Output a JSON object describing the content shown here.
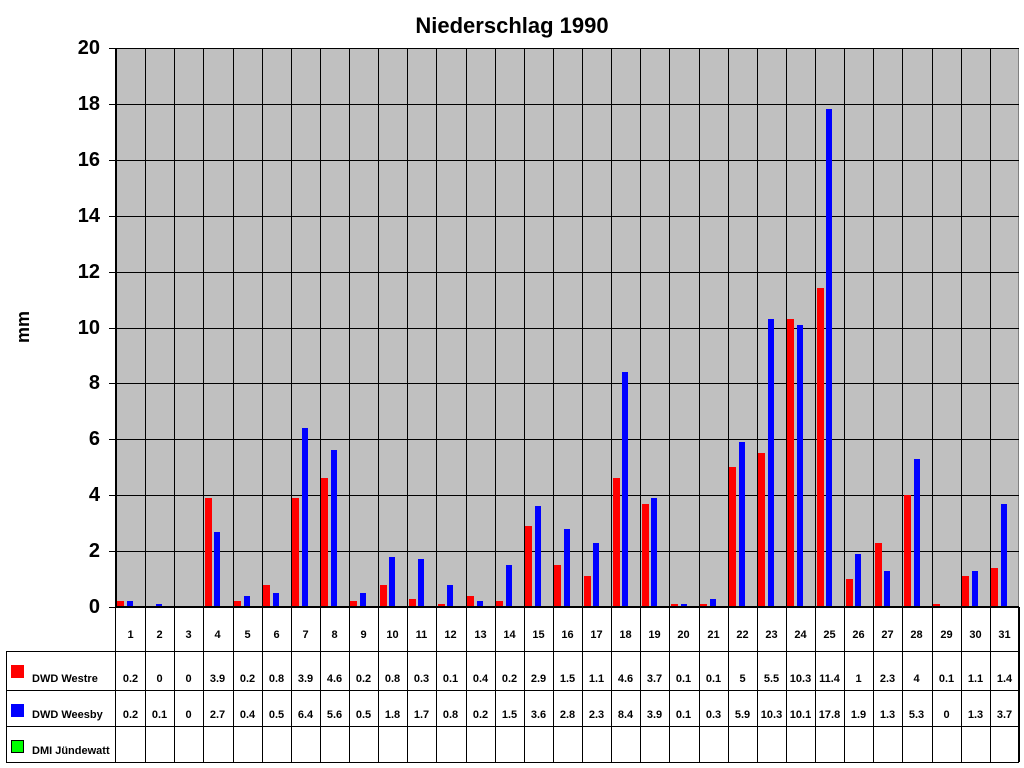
{
  "chart_data": {
    "type": "bar",
    "title": "Niederschlag 1990",
    "xlabel": "",
    "ylabel": "mm",
    "ylim": [
      0,
      20
    ],
    "yticks": [
      0,
      2,
      4,
      6,
      8,
      10,
      12,
      14,
      16,
      18,
      20
    ],
    "grid": true,
    "legend_position": "data-table-bottom",
    "categories": [
      "1",
      "2",
      "3",
      "4",
      "5",
      "6",
      "7",
      "8",
      "9",
      "10",
      "11",
      "12",
      "13",
      "14",
      "15",
      "16",
      "17",
      "18",
      "19",
      "20",
      "21",
      "22",
      "23",
      "24",
      "25",
      "26",
      "27",
      "28",
      "29",
      "30",
      "31"
    ],
    "series": [
      {
        "name": "DWD Westre",
        "color": "#ff0000",
        "values": [
          0.2,
          0,
          0,
          3.9,
          0.2,
          0.8,
          3.9,
          4.6,
          0.2,
          0.8,
          0.3,
          0.1,
          0.4,
          0.2,
          2.9,
          1.5,
          1.1,
          4.6,
          3.7,
          0.1,
          0.1,
          5,
          5.5,
          10.3,
          11.4,
          1,
          2.3,
          4,
          0.1,
          1.1,
          1.4
        ]
      },
      {
        "name": "DWD Weesby",
        "color": "#0000ff",
        "values": [
          0.2,
          0.1,
          0,
          2.7,
          0.4,
          0.5,
          6.4,
          5.6,
          0.5,
          1.8,
          1.7,
          0.8,
          0.2,
          1.5,
          3.6,
          2.8,
          2.3,
          8.4,
          3.9,
          0.1,
          0.3,
          5.9,
          10.3,
          10.1,
          17.8,
          1.9,
          1.3,
          5.3,
          0,
          1.3,
          3.7
        ]
      },
      {
        "name": "DMI Jündewatt",
        "color": "#00ff00",
        "values": [
          null,
          null,
          null,
          null,
          null,
          null,
          null,
          null,
          null,
          null,
          null,
          null,
          null,
          null,
          null,
          null,
          null,
          null,
          null,
          null,
          null,
          null,
          null,
          null,
          null,
          null,
          null,
          null,
          null,
          null,
          null
        ]
      }
    ]
  },
  "colors": {
    "plot_bg": "#c0c0c0",
    "grid": "#000000"
  }
}
